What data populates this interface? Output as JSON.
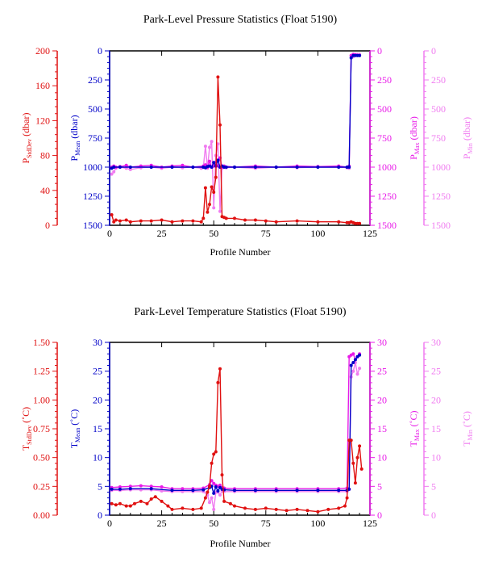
{
  "colors": {
    "stddev": "#e01010",
    "mean": "#0000c8",
    "max": "#e81ae8",
    "min": "#f07cf0",
    "frame": "#000000"
  },
  "chart_data": [
    {
      "type": "line",
      "title": "Park-Level Pressure Statistics (Float 5190)",
      "xlabel": "Profile Number",
      "xlim": [
        0,
        125
      ],
      "xticks": [
        "0",
        "25",
        "50",
        "75",
        "100",
        "125"
      ],
      "axes": {
        "stddev": {
          "label_main": "P",
          "label_sub": "StdDev",
          "unit": "(dbar)",
          "lim": [
            0,
            200
          ],
          "reversed": false,
          "ticks": [
            "0",
            "40",
            "80",
            "120",
            "160",
            "200"
          ]
        },
        "mean": {
          "label_main": "P",
          "label_sub": "Mean",
          "unit": "(dbar)",
          "lim": [
            0,
            1500
          ],
          "reversed": true,
          "ticks": [
            "0",
            "250",
            "500",
            "750",
            "1000",
            "1250",
            "1500"
          ]
        },
        "max": {
          "label_main": "P",
          "label_sub": "Max",
          "unit": "(dbar)",
          "lim": [
            0,
            1500
          ],
          "reversed": true,
          "ticks": [
            "0",
            "250",
            "500",
            "750",
            "1000",
            "1250",
            "1500"
          ]
        },
        "min": {
          "label_main": "P",
          "label_sub": "Min",
          "unit": "(dbar)",
          "lim": [
            0,
            1500
          ],
          "reversed": true,
          "ticks": [
            "0",
            "250",
            "500",
            "750",
            "1000",
            "1250",
            "1500"
          ]
        }
      },
      "series": [
        {
          "key": "stddev",
          "x": [
            1,
            2,
            3,
            5,
            8,
            10,
            15,
            20,
            25,
            30,
            35,
            40,
            44,
            45,
            46,
            47,
            48,
            49,
            50,
            51,
            52,
            53,
            54,
            55,
            56,
            60,
            65,
            70,
            75,
            80,
            90,
            100,
            110,
            114,
            115,
            116,
            117,
            118,
            119,
            120
          ],
          "y": [
            12,
            4,
            6,
            5,
            6,
            4,
            5,
            5,
            6,
            4,
            5,
            5,
            4,
            8,
            43,
            15,
            24,
            44,
            38,
            55,
            170,
            115,
            10,
            9,
            8,
            8,
            6,
            6,
            5,
            4,
            5,
            4,
            4,
            3,
            3,
            4,
            3,
            2,
            2,
            2
          ]
        },
        {
          "key": "mean",
          "x": [
            1,
            2,
            5,
            10,
            20,
            30,
            40,
            45,
            46,
            47,
            48,
            49,
            50,
            51,
            52,
            53,
            54,
            55,
            56,
            60,
            70,
            80,
            90,
            100,
            110,
            114,
            115,
            116,
            117,
            118,
            119,
            120
          ],
          "y": [
            1010,
            1000,
            1000,
            1000,
            1000,
            1000,
            1000,
            1000,
            1005,
            995,
            990,
            1000,
            960,
            990,
            940,
            1000,
            990,
            1000,
            1000,
            1000,
            1000,
            1000,
            1000,
            1000,
            1000,
            1000,
            1000,
            60,
            40,
            40,
            40,
            40
          ]
        },
        {
          "key": "max",
          "x": [
            1,
            2,
            3,
            5,
            8,
            10,
            15,
            20,
            25,
            30,
            35,
            40,
            45,
            46,
            47,
            48,
            49,
            50,
            51,
            52,
            53,
            54,
            55,
            60,
            70,
            80,
            90,
            100,
            110,
            114,
            115,
            116,
            117,
            118,
            119,
            120
          ],
          "y": [
            1000,
            990,
            1000,
            995,
            985,
            1000,
            990,
            985,
            1000,
            990,
            985,
            1000,
            990,
            980,
            1000,
            950,
            1000,
            990,
            960,
            990,
            920,
            1000,
            990,
            1000,
            990,
            1000,
            990,
            995,
            990,
            1000,
            990,
            40,
            30,
            35,
            40,
            40
          ]
        },
        {
          "key": "min",
          "x": [
            1,
            2,
            3,
            5,
            8,
            10,
            15,
            20,
            25,
            30,
            35,
            40,
            44,
            45,
            46,
            47,
            48,
            49,
            50,
            51,
            52,
            53,
            54,
            55,
            56,
            60,
            70,
            80,
            90,
            100,
            110,
            114,
            115,
            116,
            117,
            118,
            119,
            120
          ],
          "y": [
            1060,
            1040,
            1010,
            1000,
            1010,
            1020,
            1005,
            1000,
            1010,
            1000,
            1005,
            1000,
            1010,
            1000,
            820,
            1010,
            830,
            780,
            1350,
            900,
            800,
            1380,
            1010,
            1000,
            1005,
            1000,
            1010,
            1000,
            1005,
            1000,
            1000,
            1005,
            1010,
            40,
            50,
            30,
            30,
            30
          ]
        }
      ]
    },
    {
      "type": "line",
      "title": "Park-Level Temperature Statistics (Float 5190)",
      "xlabel": "Profile Number",
      "xlim": [
        0,
        125
      ],
      "xticks": [
        "0",
        "25",
        "50",
        "75",
        "100",
        "125"
      ],
      "axes": {
        "stddev": {
          "label_main": "T",
          "label_sub": "StdDev",
          "unit": "(˚C)",
          "lim": [
            0,
            1.5
          ],
          "reversed": false,
          "ticks": [
            "0.00",
            "0.25",
            "0.50",
            "0.75",
            "1.00",
            "1.25",
            "1.50"
          ]
        },
        "mean": {
          "label_main": "T",
          "label_sub": "Mean",
          "unit": "(˚C)",
          "lim": [
            0,
            30
          ],
          "reversed": false,
          "ticks": [
            "0",
            "5",
            "10",
            "15",
            "20",
            "25",
            "30"
          ]
        },
        "max": {
          "label_main": "T",
          "label_sub": "Max",
          "unit": "(˚C)",
          "lim": [
            0,
            30
          ],
          "reversed": false,
          "ticks": [
            "0",
            "5",
            "10",
            "15",
            "20",
            "25",
            "30"
          ]
        },
        "min": {
          "label_main": "T",
          "label_sub": "Min",
          "unit": "(˚C)",
          "lim": [
            0,
            30
          ],
          "reversed": false,
          "ticks": [
            "0",
            "5",
            "10",
            "15",
            "20",
            "25",
            "30"
          ]
        }
      },
      "series": [
        {
          "key": "stddev",
          "x": [
            1,
            3,
            5,
            8,
            10,
            12,
            15,
            18,
            20,
            22,
            25,
            28,
            30,
            35,
            40,
            44,
            46,
            47,
            48,
            49,
            50,
            51,
            52,
            53,
            54,
            55,
            58,
            60,
            65,
            70,
            75,
            80,
            85,
            90,
            95,
            100,
            105,
            110,
            113,
            114,
            115,
            116,
            117,
            118,
            119,
            120,
            121
          ],
          "y": [
            0.1,
            0.09,
            0.1,
            0.08,
            0.08,
            0.1,
            0.12,
            0.1,
            0.14,
            0.16,
            0.12,
            0.08,
            0.05,
            0.06,
            0.05,
            0.06,
            0.15,
            0.2,
            0.25,
            0.45,
            0.53,
            0.55,
            1.15,
            1.27,
            0.35,
            0.12,
            0.1,
            0.08,
            0.06,
            0.05,
            0.06,
            0.05,
            0.04,
            0.05,
            0.04,
            0.03,
            0.05,
            0.06,
            0.08,
            0.15,
            0.65,
            0.65,
            0.45,
            0.28,
            0.5,
            0.6,
            0.4
          ]
        },
        {
          "key": "mean",
          "x": [
            1,
            5,
            10,
            20,
            30,
            40,
            45,
            48,
            49,
            50,
            51,
            52,
            53,
            54,
            55,
            60,
            70,
            80,
            90,
            100,
            110,
            114,
            115,
            116,
            117,
            118,
            119,
            120
          ],
          "y": [
            4.5,
            4.5,
            4.6,
            4.6,
            4.3,
            4.3,
            4.4,
            4.8,
            5.0,
            3.8,
            4.9,
            4.2,
            4.8,
            4.5,
            4.4,
            4.3,
            4.3,
            4.3,
            4.3,
            4.3,
            4.3,
            4.3,
            4.5,
            26.0,
            26.5,
            27.0,
            27.5,
            27.8
          ]
        },
        {
          "key": "max",
          "x": [
            1,
            5,
            10,
            15,
            20,
            25,
            30,
            35,
            40,
            45,
            48,
            49,
            50,
            51,
            52,
            53,
            54,
            55,
            60,
            70,
            80,
            90,
            100,
            110,
            114,
            115,
            116,
            117,
            118,
            119,
            120
          ],
          "y": [
            4.8,
            4.9,
            5.0,
            5.1,
            5.0,
            4.9,
            4.6,
            4.6,
            4.6,
            4.7,
            5.3,
            6.0,
            5.5,
            5.2,
            5.0,
            5.2,
            4.8,
            4.7,
            4.6,
            4.6,
            4.6,
            4.6,
            4.6,
            4.6,
            4.7,
            27.5,
            27.8,
            28.0,
            27.0,
            27.5,
            28.0
          ]
        },
        {
          "key": "min",
          "x": [
            1,
            5,
            10,
            15,
            20,
            25,
            30,
            35,
            40,
            45,
            47,
            48,
            49,
            50,
            51,
            52,
            53,
            54,
            55,
            60,
            70,
            80,
            90,
            100,
            110,
            114,
            115,
            116,
            117,
            118,
            119,
            120
          ],
          "y": [
            4.3,
            4.3,
            4.4,
            4.4,
            4.4,
            4.2,
            4.1,
            4.1,
            4.1,
            4.1,
            3.5,
            2.2,
            3.0,
            1.0,
            4.0,
            4.0,
            3.5,
            4.2,
            4.1,
            4.1,
            4.1,
            4.1,
            4.1,
            4.1,
            4.1,
            4.1,
            4.5,
            24.0,
            25.0,
            26.5,
            24.5,
            25.5
          ]
        }
      ]
    }
  ]
}
